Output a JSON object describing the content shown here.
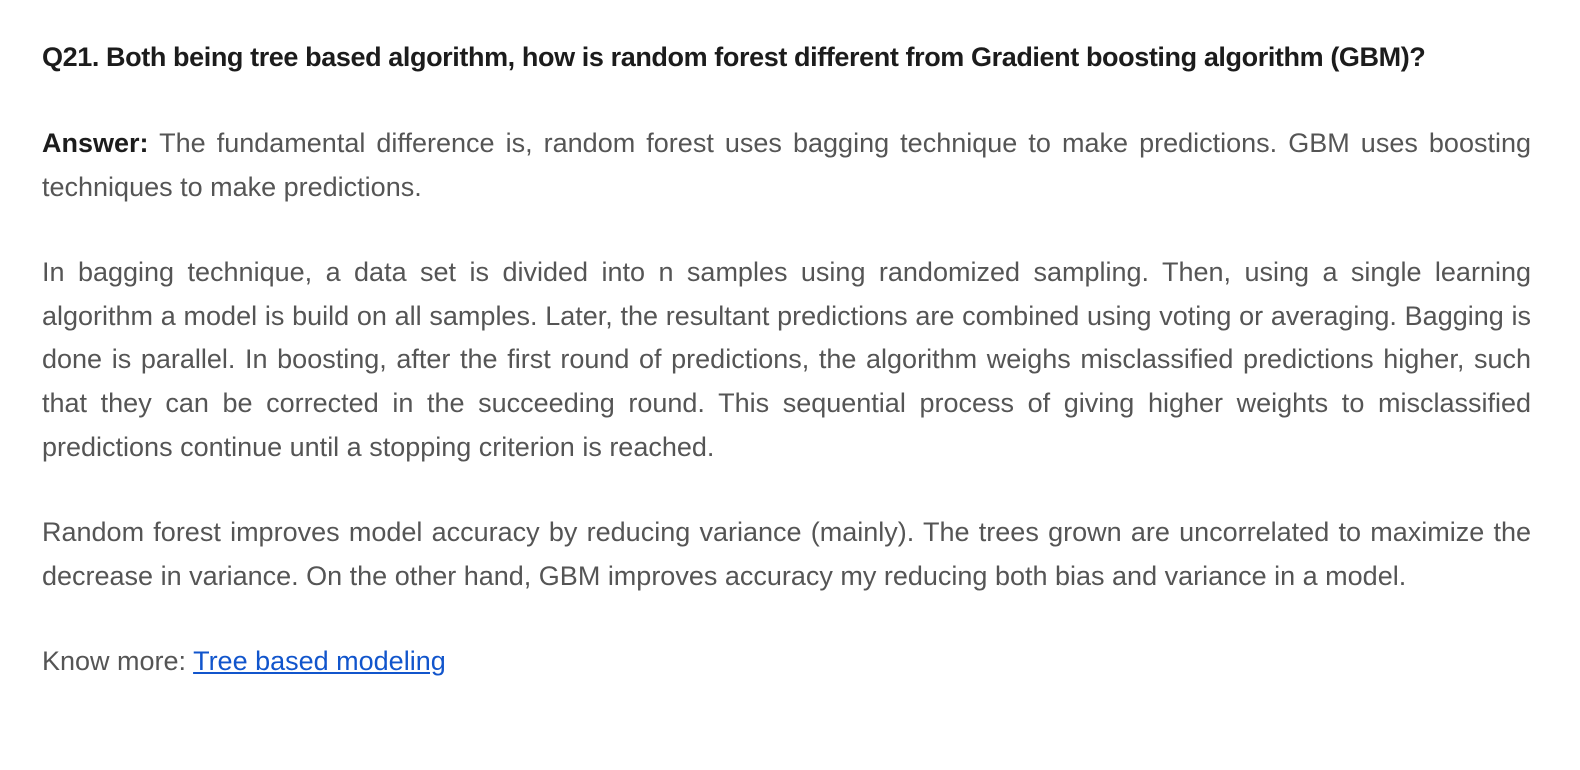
{
  "question": "Q21. Both being tree based algorithm, how is random forest different from Gradient boosting algorithm (GBM)?",
  "answer": {
    "label": "Answer:",
    "text": " The fundamental difference is, random forest uses bagging technique to make predictions. GBM uses boosting techniques to make predictions."
  },
  "paragraphs": {
    "bagging": "In bagging technique, a data set is divided into n samples using randomized sampling. Then, using a single learning algorithm a model is build on all samples. Later, the resultant predictions are combined using voting or averaging. Bagging is done is parallel. In boosting, after the first round of predictions, the algorithm weighs misclassified predictions higher, such that they can be corrected in the succeeding round. This sequential process of giving higher weights to misclassified predictions continue until a stopping criterion is reached.",
    "random_forest": "Random forest improves model accuracy by reducing variance (mainly). The trees grown are uncorrelated to maximize the decrease in variance. On the other hand, GBM improves accuracy my reducing both bias and variance in a model."
  },
  "know_more": {
    "label": "Know more: ",
    "link_text": "Tree based modeling"
  },
  "colors": {
    "heading": "#1c1c1c",
    "body_text": "#555555",
    "link": "#1155cc"
  }
}
